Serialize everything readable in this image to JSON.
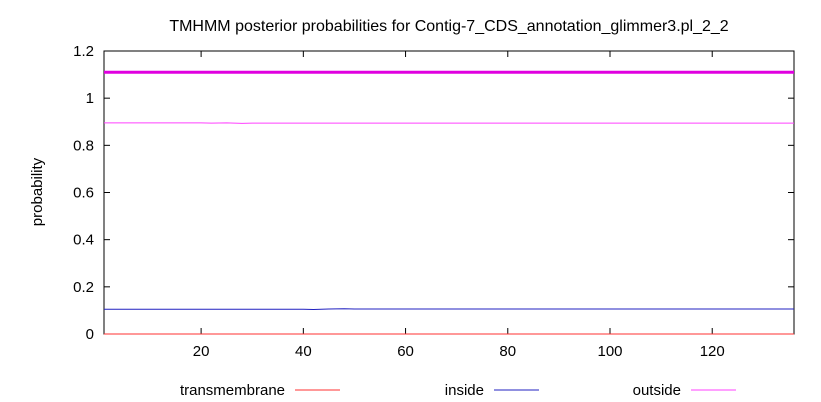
{
  "chart_data": {
    "type": "line",
    "title": "TMHMM posterior probabilities for Contig-7_CDS_annotation_glimmer3.pl_2_2",
    "xlabel": "",
    "ylabel": "probability",
    "xlim": [
      1,
      136
    ],
    "ylim": [
      0,
      1.2
    ],
    "xticks": [
      20,
      40,
      60,
      80,
      100,
      120
    ],
    "yticks": [
      0,
      0.2,
      0.4,
      0.6,
      0.8,
      1,
      1.2
    ],
    "ytick_labels": [
      "0",
      "0.2",
      "0.4",
      "0.6",
      "0.8",
      "1",
      "1.2"
    ],
    "grid": false,
    "legend_position": "bottom",
    "series": [
      {
        "name": "transmembrane",
        "color": "#ff3030",
        "x": [
          1,
          136
        ],
        "y": [
          0.0,
          0.0
        ]
      },
      {
        "name": "inside",
        "color": "#2020c0",
        "x": [
          1,
          40,
          42,
          45,
          48,
          50,
          136
        ],
        "y": [
          0.105,
          0.105,
          0.104,
          0.106,
          0.107,
          0.106,
          0.106
        ]
      },
      {
        "name": "outside",
        "color": "#ff40ff",
        "x": [
          1,
          20,
          22,
          25,
          28,
          30,
          136
        ],
        "y": [
          0.895,
          0.895,
          0.894,
          0.895,
          0.893,
          0.894,
          0.894
        ]
      },
      {
        "name": "",
        "color": "#e000e0",
        "x": [
          1,
          136
        ],
        "y": [
          1.11,
          1.11
        ],
        "thick": true
      }
    ]
  }
}
